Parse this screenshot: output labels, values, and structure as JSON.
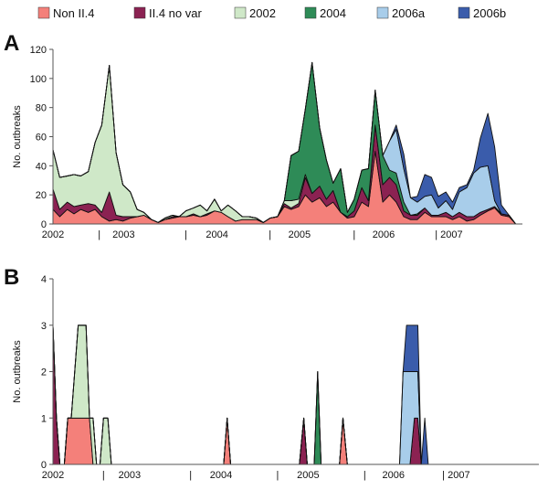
{
  "legend": [
    {
      "name": "Non II.4",
      "color": "#f4807a"
    },
    {
      "name": "II.4 no var",
      "color": "#8b2252"
    },
    {
      "name": "2002",
      "color": "#cfe8c8"
    },
    {
      "name": "2004",
      "color": "#2e8b57"
    },
    {
      "name": "2006a",
      "color": "#a8cdea"
    },
    {
      "name": "2006b",
      "color": "#3a5cab"
    }
  ],
  "chart_data": [
    {
      "panel": "A",
      "type": "area",
      "stacked": true,
      "ylabel": "No. outbreaks",
      "ylim": [
        0,
        120
      ],
      "yticks": [
        0,
        20,
        40,
        60,
        80,
        100,
        120
      ],
      "x_range": [
        2002.0,
        2007.58
      ],
      "x_tick_labels": [
        {
          "label": "2002",
          "x": 2002.0
        },
        {
          "label": "|",
          "x": 2002.55
        },
        {
          "label": "2003",
          "x": 2002.84
        },
        {
          "label": "|",
          "x": 2003.58
        },
        {
          "label": "2004",
          "x": 2003.95
        },
        {
          "label": "|",
          "x": 2004.58
        },
        {
          "label": "2005",
          "x": 2004.93
        },
        {
          "label": "|",
          "x": 2005.58
        },
        {
          "label": "2006",
          "x": 2005.93
        },
        {
          "label": "| 2007",
          "x": 2006.54
        }
      ],
      "x": [
        2002.0,
        2002.08,
        2002.17,
        2002.25,
        2002.33,
        2002.42,
        2002.5,
        2002.58,
        2002.67,
        2002.75,
        2002.83,
        2002.92,
        2003.0,
        2003.08,
        2003.17,
        2003.25,
        2003.33,
        2003.42,
        2003.5,
        2003.58,
        2003.67,
        2003.75,
        2003.83,
        2003.92,
        2004.0,
        2004.08,
        2004.17,
        2004.25,
        2004.33,
        2004.42,
        2004.5,
        2004.58,
        2004.67,
        2004.75,
        2004.83,
        2004.92,
        2005.0,
        2005.08,
        2005.17,
        2005.25,
        2005.33,
        2005.42,
        2005.5,
        2005.58,
        2005.67,
        2005.75,
        2005.83,
        2005.92,
        2006.0,
        2006.08,
        2006.17,
        2006.25,
        2006.33,
        2006.42,
        2006.5,
        2006.58,
        2006.67,
        2006.75,
        2006.83,
        2006.92,
        2007.0,
        2007.08,
        2007.17,
        2007.25,
        2007.33,
        2007.42,
        2007.5
      ],
      "series": [
        {
          "name": "Non II.4",
          "values": [
            10,
            5,
            10,
            7,
            10,
            8,
            10,
            5,
            2,
            3,
            2,
            4,
            5,
            6,
            3,
            1,
            3,
            4,
            5,
            5,
            6,
            5,
            6,
            9,
            8,
            5,
            2,
            3,
            3,
            3,
            1,
            4,
            5,
            12,
            10,
            12,
            20,
            15,
            18,
            12,
            15,
            8,
            4,
            5,
            15,
            12,
            50,
            15,
            20,
            15,
            5,
            3,
            3,
            8,
            5,
            5,
            5,
            3,
            5,
            2,
            3,
            6,
            9,
            11,
            6,
            5,
            0
          ]
        },
        {
          "name": "II.4 no var",
          "values": [
            14,
            5,
            5,
            5,
            3,
            6,
            3,
            3,
            20,
            3,
            3,
            1,
            0,
            0,
            0,
            0,
            0,
            1,
            0,
            0,
            1,
            0,
            1,
            0,
            0,
            0,
            0,
            0,
            0,
            0,
            0,
            0,
            0,
            2,
            1,
            2,
            12,
            6,
            8,
            5,
            8,
            0,
            1,
            4,
            10,
            4,
            18,
            12,
            12,
            12,
            4,
            3,
            3,
            3,
            1,
            1,
            3,
            2,
            3,
            3,
            2,
            2,
            1,
            1,
            1,
            1,
            0
          ]
        },
        {
          "name": "2002",
          "values": [
            27,
            22,
            18,
            22,
            20,
            22,
            43,
            60,
            87,
            43,
            22,
            17,
            5,
            2,
            0,
            0,
            1,
            1,
            0,
            4,
            4,
            8,
            2,
            8,
            1,
            8,
            7,
            2,
            2,
            1,
            0,
            0,
            0,
            2,
            5,
            3,
            2,
            0,
            0,
            0,
            0,
            0,
            0,
            0,
            0,
            0,
            0,
            0,
            0,
            0,
            0,
            0,
            0,
            0,
            0,
            0,
            0,
            0,
            0,
            0,
            0,
            0,
            0,
            0,
            0,
            0,
            0
          ]
        },
        {
          "name": "2004",
          "values": [
            0,
            0,
            0,
            0,
            0,
            0,
            0,
            0,
            0,
            0,
            0,
            0,
            0,
            0,
            0,
            0,
            0,
            0,
            0,
            0,
            0,
            0,
            0,
            0,
            0,
            0,
            0,
            0,
            0,
            0,
            0,
            0,
            0,
            0,
            31,
            33,
            45,
            90,
            40,
            27,
            5,
            30,
            3,
            8,
            12,
            22,
            24,
            20,
            5,
            8,
            6,
            0,
            1,
            0,
            0,
            0,
            0,
            0,
            0,
            0,
            0,
            0,
            0,
            0,
            0,
            0,
            0
          ]
        },
        {
          "name": "2006a",
          "values": [
            0,
            0,
            0,
            0,
            0,
            0,
            0,
            0,
            0,
            0,
            0,
            0,
            0,
            0,
            0,
            0,
            0,
            0,
            0,
            0,
            0,
            0,
            0,
            0,
            0,
            0,
            0,
            0,
            0,
            0,
            0,
            0,
            0,
            0,
            0,
            0,
            0,
            0,
            0,
            0,
            0,
            0,
            0,
            0,
            0,
            0,
            0,
            0,
            20,
            30,
            23,
            12,
            8,
            8,
            14,
            5,
            8,
            5,
            14,
            20,
            30,
            31,
            30,
            4,
            0,
            0,
            0
          ]
        },
        {
          "name": "2006b",
          "values": [
            0,
            0,
            0,
            0,
            0,
            0,
            0,
            0,
            0,
            0,
            0,
            0,
            0,
            0,
            0,
            0,
            0,
            0,
            0,
            0,
            0,
            0,
            0,
            0,
            0,
            0,
            0,
            0,
            0,
            0,
            0,
            0,
            0,
            0,
            0,
            0,
            0,
            0,
            0,
            0,
            0,
            0,
            0,
            0,
            0,
            0,
            0,
            0,
            0,
            3,
            10,
            0,
            4,
            15,
            12,
            8,
            6,
            5,
            3,
            2,
            2,
            20,
            36,
            37,
            6,
            0,
            0
          ]
        }
      ]
    },
    {
      "panel": "B",
      "type": "area",
      "stacked": true,
      "ylabel": "No. outbreaks",
      "ylim": [
        0,
        4
      ],
      "yticks": [
        0,
        1,
        2,
        3,
        4
      ],
      "x_range": [
        2002.0,
        2007.58
      ],
      "x_tick_labels": [
        {
          "label": "2002",
          "x": 2002.02
        },
        {
          "label": "|",
          "x": 2002.58
        },
        {
          "label": "2003",
          "x": 2002.88
        },
        {
          "label": "|",
          "x": 2003.58
        },
        {
          "label": "2004",
          "x": 2003.93
        },
        {
          "label": "|",
          "x": 2004.58
        },
        {
          "label": "2005",
          "x": 2004.93
        },
        {
          "label": "|",
          "x": 2005.58
        },
        {
          "label": "2006",
          "x": 2005.91
        },
        {
          "label": "| 2007",
          "x": 2006.47
        }
      ],
      "x": [
        2002.0,
        2002.04,
        2002.08,
        2002.13,
        2002.17,
        2002.21,
        2002.25,
        2002.29,
        2002.33,
        2002.38,
        2002.42,
        2002.46,
        2002.5,
        2002.54,
        2002.58,
        2002.63,
        2002.67,
        2002.71,
        2002.75,
        2002.79,
        2002.83,
        2003.92,
        2003.96,
        2004.0,
        2004.04,
        2004.79,
        2004.83,
        2004.88,
        2004.92,
        2004.96,
        2005.0,
        2005.04,
        2005.08,
        2005.13,
        2005.17,
        2005.21,
        2005.25,
        2005.29,
        2005.33,
        2005.38,
        2005.42,
        2005.85,
        2005.9,
        2005.94,
        2005.98,
        2006.02,
        2006.06,
        2006.1,
        2006.15,
        2006.19,
        2006.23,
        2006.27,
        2006.31,
        2006.35,
        2006.4,
        2006.44,
        2006.48,
        2006.52,
        2006.56
      ],
      "series": [
        {
          "name": "Non II.4",
          "values": [
            0,
            0,
            0,
            0,
            1,
            1,
            1,
            1,
            1,
            1,
            1,
            0,
            0,
            0,
            0,
            0,
            0,
            0,
            0,
            0,
            0,
            0,
            0,
            1,
            0,
            0,
            0,
            0,
            0,
            0,
            0,
            0,
            0,
            0,
            0,
            0,
            0,
            0,
            1,
            0,
            0,
            0,
            0,
            0,
            0,
            0,
            0,
            0,
            0,
            0,
            0,
            0,
            0,
            0,
            0,
            0,
            0,
            0,
            0
          ]
        },
        {
          "name": "II.4 no var",
          "values": [
            3,
            1,
            0,
            0,
            0,
            0,
            0,
            0,
            0,
            0,
            0,
            0,
            0,
            0,
            0,
            0,
            0,
            0,
            0,
            0,
            0,
            0,
            0,
            0,
            0,
            0,
            0,
            1,
            0,
            0,
            0,
            0,
            0,
            0,
            0,
            0,
            0,
            0,
            0,
            0,
            0,
            0,
            0,
            0,
            0,
            0,
            0,
            0,
            1,
            1,
            0,
            0,
            0,
            0,
            0,
            0,
            0,
            0,
            0
          ]
        },
        {
          "name": "2002",
          "values": [
            0,
            0,
            0,
            0,
            0,
            0,
            1,
            2,
            2,
            2,
            0,
            1,
            0,
            0,
            1,
            1,
            0,
            0,
            0,
            0,
            0,
            0,
            0,
            0,
            0,
            0,
            0,
            0,
            0,
            0,
            0,
            0,
            0,
            0,
            0,
            0,
            0,
            0,
            0,
            0,
            0,
            0,
            0,
            0,
            0,
            0,
            0,
            0,
            0,
            0,
            0,
            0,
            0,
            0,
            0,
            0,
            0,
            0,
            0
          ]
        },
        {
          "name": "2004",
          "values": [
            0,
            0,
            0,
            0,
            0,
            0,
            0,
            0,
            0,
            0,
            0,
            0,
            0,
            0,
            0,
            0,
            0,
            0,
            0,
            0,
            0,
            0,
            0,
            0,
            0,
            0,
            0,
            0,
            0,
            0,
            0,
            2,
            0,
            0,
            0,
            0,
            0,
            0,
            0,
            0,
            0,
            0,
            0,
            0,
            0,
            0,
            0,
            0,
            0,
            0,
            0,
            0,
            0,
            0,
            0,
            0,
            0,
            0,
            0
          ]
        },
        {
          "name": "2006a",
          "values": [
            0,
            0,
            0,
            0,
            0,
            0,
            0,
            0,
            0,
            0,
            0,
            0,
            0,
            0,
            0,
            0,
            0,
            0,
            0,
            0,
            0,
            0,
            0,
            0,
            0,
            0,
            0,
            0,
            0,
            0,
            0,
            0,
            0,
            0,
            0,
            0,
            0,
            0,
            0,
            0,
            0,
            0,
            0,
            0,
            0,
            2,
            2,
            2,
            1,
            1,
            0,
            0,
            0,
            0,
            0,
            0,
            0,
            0,
            0
          ]
        },
        {
          "name": "2006b",
          "values": [
            0,
            0,
            0,
            0,
            0,
            0,
            0,
            0,
            0,
            0,
            0,
            0,
            0,
            0,
            0,
            0,
            0,
            0,
            0,
            0,
            0,
            0,
            0,
            0,
            0,
            0,
            0,
            0,
            0,
            0,
            0,
            0,
            0,
            0,
            0,
            0,
            0,
            0,
            0,
            0,
            0,
            0,
            0,
            0,
            0,
            0,
            1,
            1,
            1,
            1,
            0,
            1,
            0,
            0,
            0,
            0,
            0,
            0,
            0
          ]
        }
      ]
    }
  ]
}
